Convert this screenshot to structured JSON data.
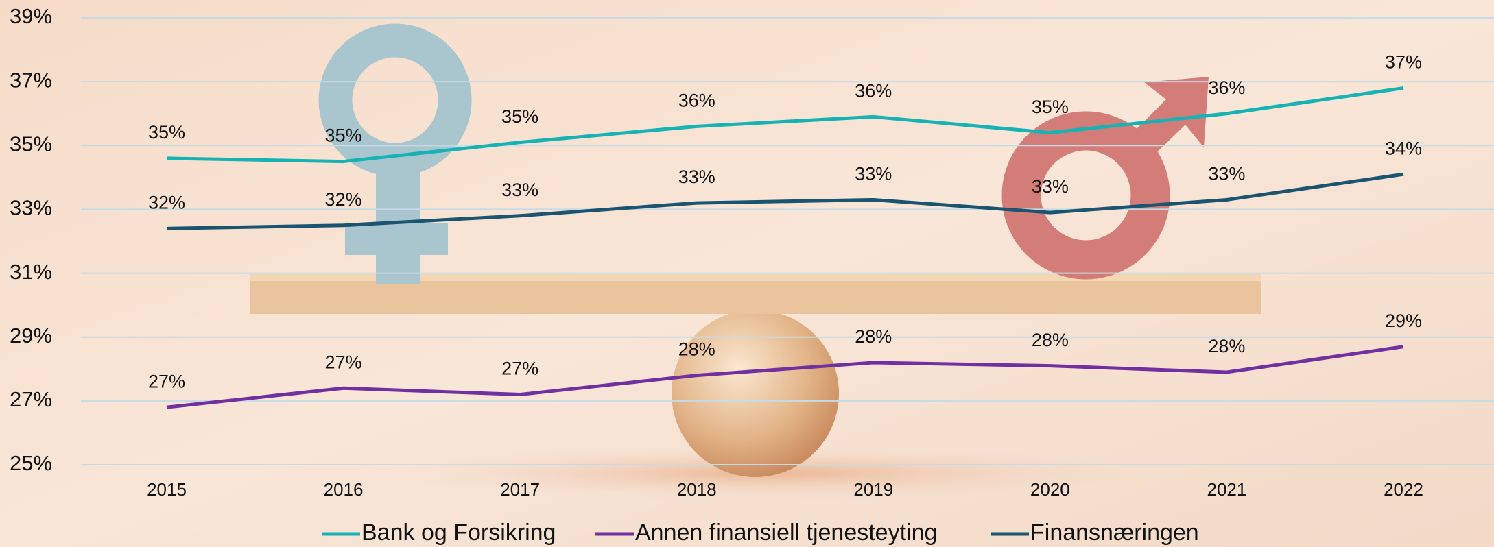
{
  "chart_data": {
    "type": "line",
    "categories": [
      "2015",
      "2016",
      "2017",
      "2018",
      "2019",
      "2020",
      "2021",
      "2022"
    ],
    "series": [
      {
        "name": "Bank og Forsikring",
        "color": "#17b2b4",
        "values": [
          34.6,
          34.5,
          35.1,
          35.6,
          35.9,
          35.4,
          36.0,
          36.8
        ],
        "value_labels": [
          "35%",
          "35%",
          "35%",
          "36%",
          "36%",
          "35%",
          "36%",
          "37%"
        ]
      },
      {
        "name": "Annen finansiell tjenesteyting",
        "color": "#7030a0",
        "values": [
          26.8,
          27.4,
          27.2,
          27.8,
          28.2,
          28.1,
          27.9,
          28.7
        ],
        "value_labels": [
          "27%",
          "27%",
          "27%",
          "28%",
          "28%",
          "28%",
          "28%",
          "29%"
        ]
      },
      {
        "name": "Finansnæringen",
        "color": "#1a5470",
        "values": [
          32.4,
          32.5,
          32.8,
          33.2,
          33.3,
          32.9,
          33.3,
          34.1
        ],
        "value_labels": [
          "32%",
          "32%",
          "33%",
          "33%",
          "33%",
          "33%",
          "33%",
          "34%"
        ]
      }
    ],
    "ylim": [
      25,
      39
    ],
    "yticks": [
      {
        "value": 25,
        "label": "25%"
      },
      {
        "value": 27,
        "label": "27%"
      },
      {
        "value": 29,
        "label": "29%"
      },
      {
        "value": 31,
        "label": "31%"
      },
      {
        "value": 33,
        "label": "33%"
      },
      {
        "value": 35,
        "label": "35%"
      },
      {
        "value": 37,
        "label": "37%"
      },
      {
        "value": 39,
        "label": "39%"
      }
    ],
    "grid": true,
    "legend": "bottom"
  }
}
